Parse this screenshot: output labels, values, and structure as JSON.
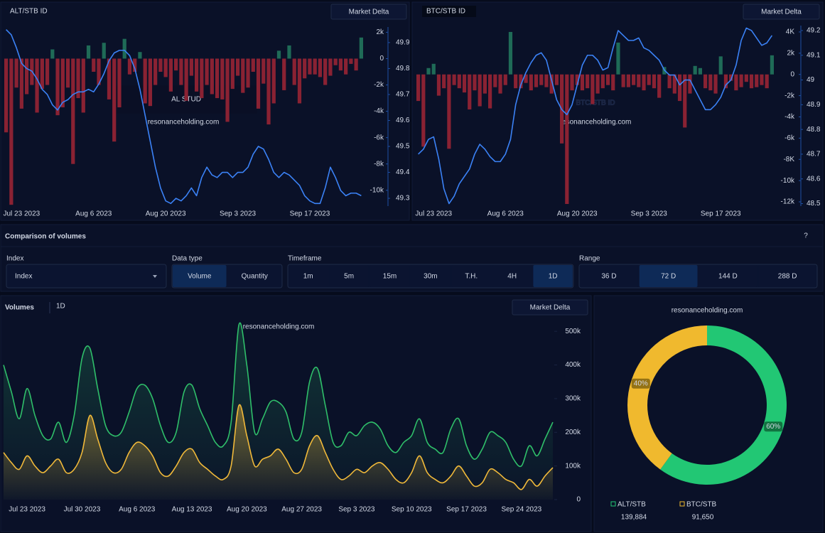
{
  "controls": {
    "title": "Comparison of volumes",
    "help": "?",
    "index": {
      "label": "Index",
      "placeholder": "Index"
    },
    "data_type": {
      "label": "Data type",
      "options": [
        "Volume",
        "Quantity"
      ],
      "selected": 0
    },
    "timeframe": {
      "label": "Timeframe",
      "options": [
        "1m",
        "5m",
        "15m",
        "30m",
        "T.H.",
        "4H",
        "1D"
      ],
      "selected": 6
    },
    "range": {
      "label": "Range",
      "options": [
        "36 D",
        "72 D",
        "144 D",
        "288 D"
      ],
      "selected": 1
    }
  },
  "chart_data": [
    {
      "type": "combo",
      "title": "ALT/STB ID",
      "button": "Market Delta",
      "annotation": "AL STUD",
      "watermark": "resonanceholding.com",
      "categories": [
        null,
        null,
        null,
        "Jul 23 2023",
        null,
        null,
        null,
        null,
        null,
        null,
        null,
        null,
        null,
        null,
        null,
        null,
        null,
        "Aug 6 2023",
        null,
        null,
        null,
        null,
        null,
        null,
        null,
        null,
        null,
        null,
        null,
        null,
        null,
        "Aug 20 2023",
        null,
        null,
        null,
        null,
        null,
        null,
        null,
        null,
        null,
        null,
        null,
        null,
        null,
        "Sep 3 2023",
        null,
        null,
        null,
        null,
        null,
        null,
        null,
        null,
        null,
        null,
        null,
        null,
        null,
        "Sep 17 2023",
        null,
        null,
        null,
        null,
        null,
        null,
        null,
        null,
        null,
        null
      ],
      "series": [
        {
          "type": "bar",
          "colors": {
            "up": "#1f6b57",
            "down": "#8a2233"
          },
          "values": [
            -5600,
            -11100,
            -2200,
            -3800,
            -2700,
            -2000,
            -4100,
            -2300,
            -2000,
            700,
            -4300,
            -3700,
            -2200,
            -8000,
            -3000,
            -4100,
            1000,
            -1000,
            -2000,
            1200,
            -3100,
            -6300,
            -3700,
            1500,
            -1200,
            -1000,
            500,
            -3400,
            -3600,
            -2000,
            -1000,
            -1400,
            -2500,
            -900,
            -2000,
            -3200,
            -1300,
            -2500,
            -3000,
            -2000,
            -2700,
            -3000,
            -3100,
            -4800,
            -2300,
            -1300,
            -2600,
            -2200,
            -1000,
            -3800,
            -1900,
            -5000,
            -3400,
            600,
            -2400,
            1000,
            -2000,
            -3400,
            -1500,
            -1200,
            -1200,
            -1400,
            -2000,
            -1300,
            -500,
            -900,
            -1200,
            -400,
            -900,
            1600
          ]
        },
        {
          "type": "line",
          "axis": "y2",
          "color": "#3b82f6",
          "values": [
            49.95,
            49.93,
            49.88,
            49.82,
            49.8,
            49.79,
            49.76,
            49.72,
            49.7,
            49.66,
            49.64,
            49.67,
            49.68,
            49.7,
            49.71,
            49.71,
            49.72,
            49.71,
            49.74,
            49.78,
            49.83,
            49.86,
            49.87,
            49.87,
            49.85,
            49.8,
            49.72,
            49.62,
            49.52,
            49.42,
            49.34,
            49.29,
            49.28,
            49.3,
            49.29,
            49.31,
            49.34,
            49.31,
            49.38,
            49.42,
            49.39,
            49.38,
            49.4,
            49.4,
            49.38,
            49.4,
            49.4,
            49.42,
            49.47,
            49.5,
            49.49,
            49.45,
            49.4,
            49.38,
            49.4,
            49.39,
            49.37,
            49.35,
            49.31,
            49.29,
            49.28,
            49.28,
            49.34,
            49.42,
            49.38,
            49.33,
            49.31,
            49.32,
            49.32,
            49.31
          ]
        }
      ],
      "ylim": [
        -11200,
        2400
      ],
      "yticks": [
        {
          "value": 2000,
          "label": "2k"
        },
        0,
        {
          "value": -2000,
          "label": "-2k"
        },
        {
          "value": -4000,
          "label": "-4k"
        },
        {
          "value": -6000,
          "label": "-6k"
        },
        {
          "value": -8000,
          "label": "-8k"
        },
        {
          "value": -10000,
          "label": "-10k"
        }
      ],
      "y2lim": [
        49.27,
        49.96
      ],
      "y2ticks": [
        49.9,
        49.8,
        49.7,
        49.6,
        49.5,
        49.4,
        49.3
      ]
    },
    {
      "type": "combo",
      "title": "BTC/STB ID",
      "button": "Market Delta",
      "annotation": "BTC/STB ID",
      "watermark": "resonanceholding.com",
      "categories": [
        null,
        null,
        null,
        "Jul 23 2023",
        null,
        null,
        null,
        null,
        null,
        null,
        null,
        null,
        null,
        null,
        null,
        null,
        null,
        "Aug 6 2023",
        null,
        null,
        null,
        null,
        null,
        null,
        null,
        null,
        null,
        null,
        null,
        null,
        null,
        "Aug 20 2023",
        null,
        null,
        null,
        null,
        null,
        null,
        null,
        null,
        null,
        null,
        null,
        null,
        null,
        "Sep 3 2023",
        null,
        null,
        null,
        null,
        null,
        null,
        null,
        null,
        null,
        null,
        null,
        null,
        null,
        "Sep 17 2023",
        null,
        null,
        null,
        null,
        null,
        null,
        null,
        null,
        null,
        null
      ],
      "series": [
        {
          "type": "bar",
          "colors": {
            "up": "#1f6b57",
            "down": "#8a2233"
          },
          "values": [
            -2500,
            -6800,
            600,
            1000,
            -2000,
            -1300,
            -7000,
            -1000,
            -1300,
            -1700,
            -3300,
            -1500,
            -3000,
            -1800,
            -3200,
            -1200,
            -1800,
            -1000,
            4000,
            -1300,
            -1300,
            -800,
            -1500,
            -1200,
            -1000,
            -1200,
            -1800,
            -1000,
            -6500,
            -12200,
            -1500,
            -1000,
            -1500,
            -1300,
            -2800,
            -1800,
            -1300,
            -1000,
            -1500,
            3000,
            -1200,
            -1200,
            -1000,
            -1200,
            -1500,
            -1000,
            -1300,
            -2200,
            700,
            -1300,
            -1800,
            -2500,
            -5000,
            -1800,
            800,
            600,
            -1300,
            -1500,
            -1800,
            1700,
            -1300,
            -600,
            -1500,
            -1200,
            -700,
            -1300,
            -1200,
            -1000,
            -1300,
            1800
          ]
        },
        {
          "type": "line",
          "axis": "y2",
          "color": "#3b82f6",
          "values": [
            48.7,
            48.72,
            48.76,
            48.77,
            48.68,
            48.56,
            48.5,
            48.53,
            48.58,
            48.61,
            48.64,
            48.7,
            48.74,
            48.72,
            48.69,
            48.67,
            48.67,
            48.7,
            48.76,
            48.9,
            48.98,
            49.03,
            49.07,
            49.1,
            49.11,
            49.08,
            49.0,
            48.92,
            48.88,
            48.86,
            48.9,
            48.98,
            49.06,
            49.1,
            49.1,
            49.08,
            49.04,
            49.05,
            49.13,
            49.2,
            49.18,
            49.16,
            49.16,
            49.17,
            49.13,
            49.12,
            49.1,
            49.08,
            49.04,
            49.02,
            49.02,
            48.98,
            49.0,
            49.0,
            48.96,
            48.92,
            48.88,
            48.88,
            48.9,
            48.93,
            48.98,
            49.0,
            49.06,
            49.16,
            49.21,
            49.2,
            49.17,
            49.14,
            49.15,
            49.18
          ]
        }
      ],
      "ylim": [
        -12400,
        4600
      ],
      "yticks": [
        {
          "value": 4000,
          "label": "4K"
        },
        {
          "value": 2000,
          "label": "2k"
        },
        0,
        {
          "value": -2000,
          "label": "-2k"
        },
        {
          "value": -4000,
          "label": "-4k"
        },
        {
          "value": -6000,
          "label": "-6k"
        },
        {
          "value": -8000,
          "label": "-8K"
        },
        {
          "value": -10000,
          "label": "-10k"
        },
        {
          "value": -12000,
          "label": "-12k"
        }
      ],
      "y2lim": [
        48.49,
        49.22
      ],
      "y2ticks": [
        49.2,
        49.1,
        49,
        48.9,
        48.8,
        48.7,
        48.6,
        48.5
      ]
    },
    {
      "type": "area",
      "title": "Volumes",
      "subtitle": "1D",
      "button": "Market Delta",
      "watermark": "resonanceholding.com",
      "categories": [
        null,
        null,
        null,
        "Jul 23 2023",
        null,
        null,
        null,
        null,
        null,
        null,
        "Jul 30 2023",
        null,
        null,
        null,
        null,
        null,
        null,
        "Aug 6 2023",
        null,
        null,
        null,
        null,
        null,
        null,
        "Aug 13 2023",
        null,
        null,
        null,
        null,
        null,
        null,
        "Aug 20 2023",
        null,
        null,
        null,
        null,
        null,
        null,
        "Aug 27 2023",
        null,
        null,
        null,
        null,
        null,
        null,
        "Sep 3 2023",
        null,
        null,
        null,
        null,
        null,
        null,
        "Sep 10 2023",
        null,
        null,
        null,
        null,
        null,
        null,
        "Sep 17 2023",
        null,
        null,
        null,
        null,
        null,
        null,
        "Sep 24 2023",
        null,
        null,
        null,
        null
      ],
      "series": [
        {
          "color": "#2fbf6a",
          "values": [
            400000,
            320000,
            240000,
            330000,
            250000,
            190000,
            180000,
            230000,
            170000,
            250000,
            420000,
            450000,
            330000,
            220000,
            190000,
            200000,
            260000,
            330000,
            340000,
            300000,
            220000,
            170000,
            200000,
            320000,
            340000,
            270000,
            220000,
            170000,
            160000,
            230000,
            520000,
            400000,
            200000,
            240000,
            290000,
            290000,
            260000,
            180000,
            200000,
            350000,
            390000,
            280000,
            170000,
            160000,
            200000,
            190000,
            220000,
            230000,
            210000,
            160000,
            140000,
            170000,
            190000,
            240000,
            170000,
            150000,
            140000,
            210000,
            240000,
            160000,
            120000,
            150000,
            200000,
            190000,
            170000,
            120000,
            100000,
            160000,
            130000,
            180000,
            230000
          ]
        },
        {
          "color": "#f0b93a",
          "values": [
            140000,
            110000,
            90000,
            130000,
            100000,
            80000,
            100000,
            120000,
            80000,
            90000,
            140000,
            250000,
            180000,
            110000,
            80000,
            90000,
            140000,
            170000,
            160000,
            130000,
            80000,
            70000,
            100000,
            140000,
            150000,
            110000,
            90000,
            70000,
            60000,
            100000,
            280000,
            190000,
            100000,
            120000,
            130000,
            150000,
            120000,
            80000,
            90000,
            160000,
            190000,
            140000,
            90000,
            60000,
            70000,
            90000,
            80000,
            100000,
            110000,
            90000,
            60000,
            50000,
            80000,
            130000,
            80000,
            60000,
            50000,
            70000,
            100000,
            70000,
            40000,
            50000,
            90000,
            80000,
            60000,
            50000,
            30000,
            60000,
            40000,
            70000,
            95000
          ]
        }
      ],
      "ylim": [
        0,
        530000
      ],
      "yticks": [
        {
          "value": 500000,
          "label": "500k"
        },
        {
          "value": 400000,
          "label": "400k"
        },
        {
          "value": 300000,
          "label": "300k"
        },
        {
          "value": 200000,
          "label": "200k"
        },
        {
          "value": 100000,
          "label": "100k"
        },
        0
      ]
    },
    {
      "type": "pie",
      "watermark": "resonanceholding.com",
      "categories": [
        "ALT/STB",
        "BTC/STB"
      ],
      "values": [
        60,
        40
      ],
      "value_labels": [
        "60%",
        "40%"
      ],
      "colors": [
        "#22c774",
        "#f0b92e"
      ],
      "totals": [
        "139,884",
        "91,650"
      ]
    }
  ]
}
